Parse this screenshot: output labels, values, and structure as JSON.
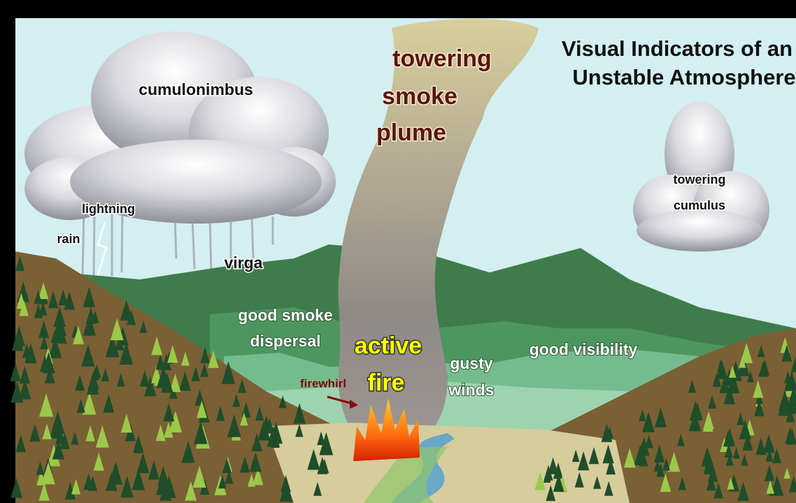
{
  "title": {
    "lines": [
      "Visual Indicators of an",
      "Unstable Atmosphere"
    ]
  },
  "labels": [
    {
      "lines": [
        "cumulonimbus"
      ]
    },
    {
      "lines": [
        "lightning"
      ]
    },
    {
      "lines": [
        "rain"
      ]
    },
    {
      "lines": [
        "virga"
      ]
    },
    {
      "lines": [
        "towering",
        "smoke",
        "plume"
      ]
    },
    {
      "lines": [
        "towering",
        "cumulus"
      ]
    },
    {
      "lines": [
        "good smoke",
        "dispersal"
      ]
    },
    {
      "lines": [
        "active",
        "fire"
      ]
    },
    {
      "lines": [
        "firewhirl"
      ]
    },
    {
      "lines": [
        "gusty",
        "winds"
      ]
    },
    {
      "lines": [
        "good visibility"
      ]
    }
  ]
}
